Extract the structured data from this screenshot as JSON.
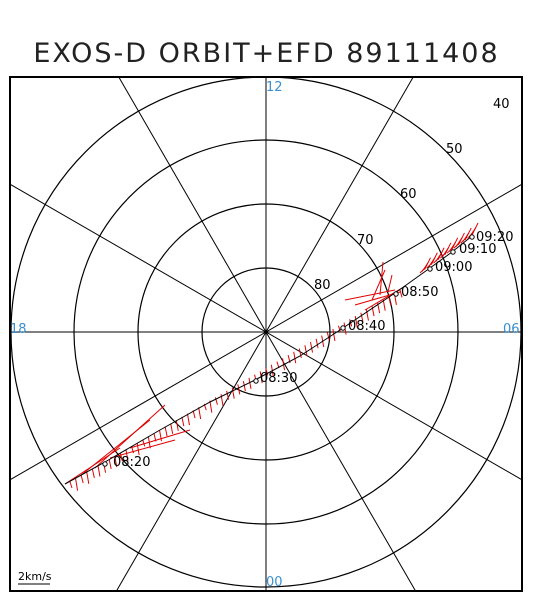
{
  "title": "EXOS-D ORBIT+EFD 89111408",
  "latitude_labels": [
    "80",
    "70",
    "60",
    "50",
    "40"
  ],
  "mlt_labels": {
    "top": "12",
    "right": "06",
    "bottom": "00",
    "left": "18"
  },
  "time_marks": [
    "08:20",
    "08:30",
    "08:40",
    "08:50",
    "09:00",
    "09:10",
    "09:20"
  ],
  "scale_label": "2km/s",
  "colors": {
    "vectors": "#e00000",
    "mlt_labels": "#3a8fd0",
    "lines": "#000000"
  }
}
